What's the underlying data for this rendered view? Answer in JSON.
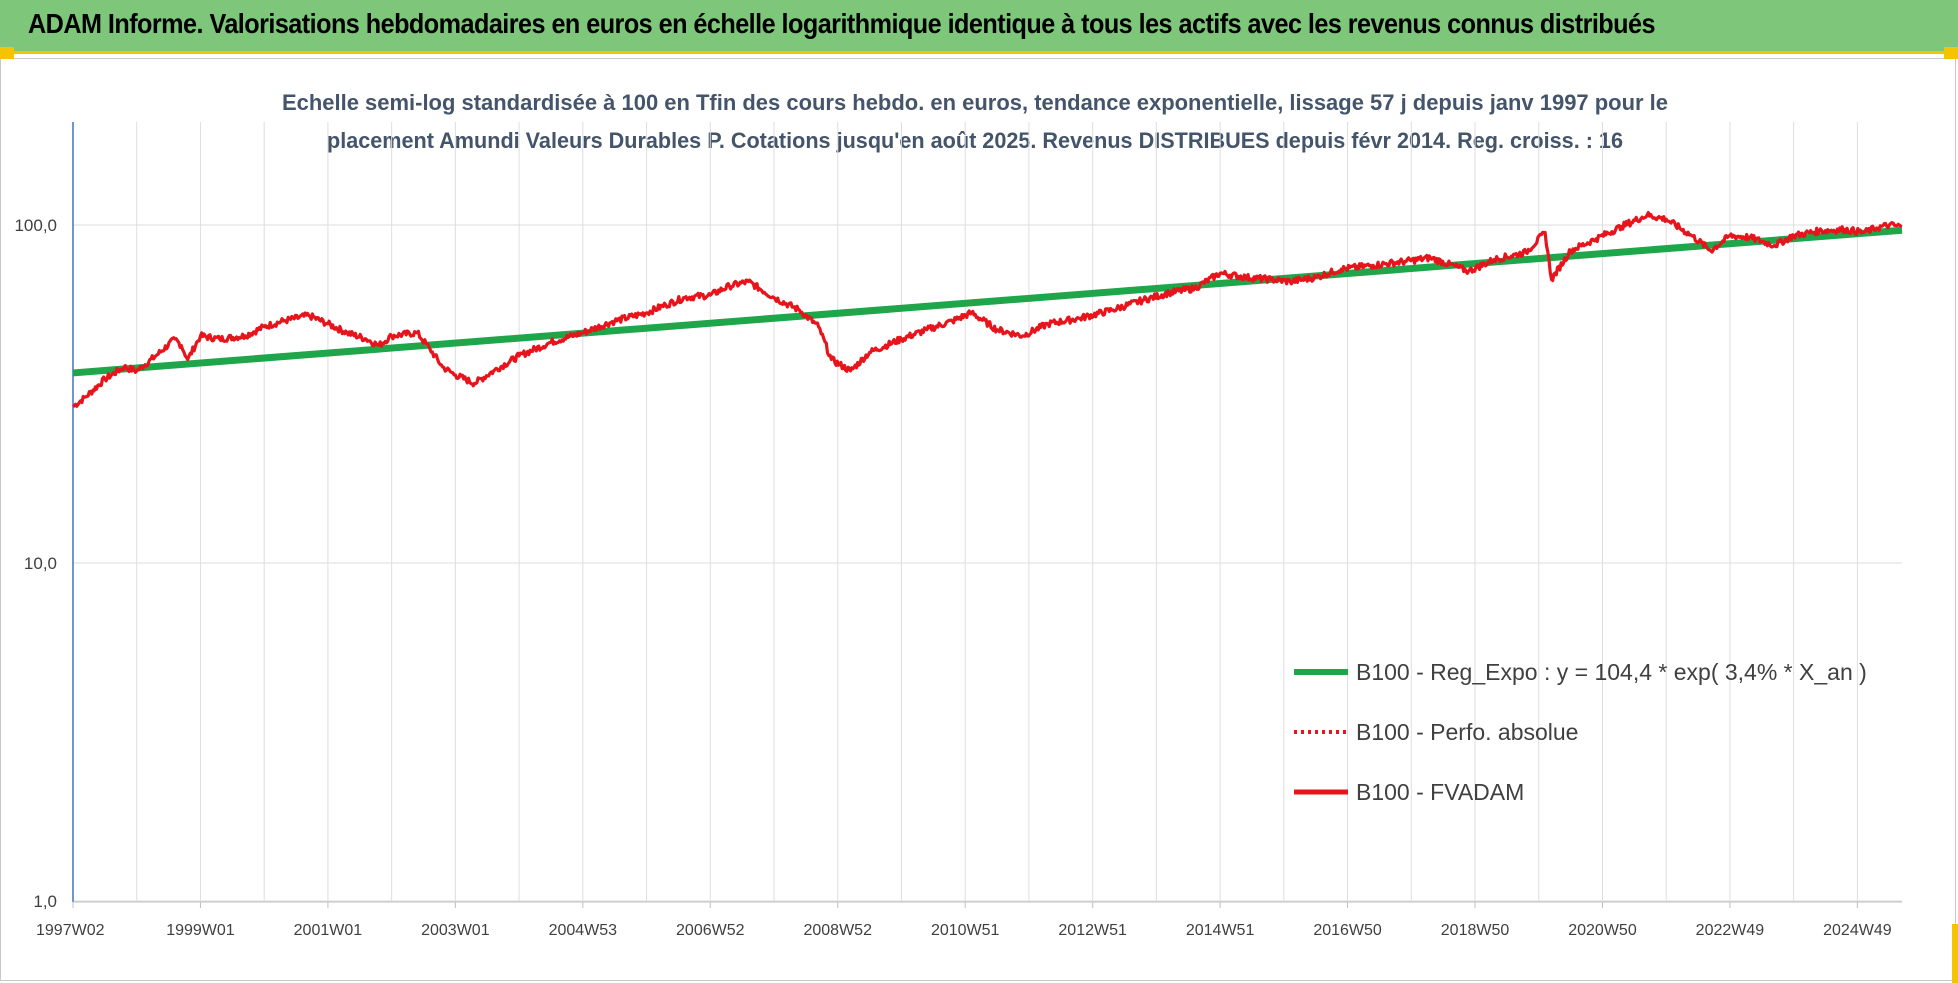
{
  "header": {
    "title": "ADAM Informe. Valorisations hebdomadaires en euros en échelle logarithmique identique à tous les actifs avec les revenus connus distribués"
  },
  "colors": {
    "banner": "#7dc67a",
    "accent": "#f5c400",
    "trend": "#1fa64a",
    "series": "#e8141c",
    "title_text": "#44546a"
  },
  "chart_data": {
    "type": "line",
    "title_lines": [
      "Echelle semi-log standardisée à 100 en Tfin des cours hebdo. en euros, tendance exponentielle, lissage 57 j depuis janv 1997 pour le",
      "placement Amundi Valeurs Durables P. Cotations jusqu'en août 2025. Revenus DISTRIBUES depuis févr 2014. Reg. croiss. : 16"
    ],
    "xlabel": "",
    "ylabel": "",
    "y_scale": "log",
    "ylim": [
      1,
      200
    ],
    "xlim": [
      1997.0,
      2025.7
    ],
    "grid": true,
    "legend_position": "bottom-right",
    "y_ticks": [
      {
        "value": 1,
        "label": "1,0"
      },
      {
        "value": 10,
        "label": "10,0"
      },
      {
        "value": 100,
        "label": "100,0"
      }
    ],
    "x_ticks": [
      {
        "value": 1997.0,
        "label": "1997W02"
      },
      {
        "value": 1999.0,
        "label": "1999W01"
      },
      {
        "value": 2001.0,
        "label": "2001W01"
      },
      {
        "value": 2003.0,
        "label": "2003W01"
      },
      {
        "value": 2005.0,
        "label": "2004W53"
      },
      {
        "value": 2007.0,
        "label": "2006W52"
      },
      {
        "value": 2009.0,
        "label": "2008W52"
      },
      {
        "value": 2011.0,
        "label": "2010W51"
      },
      {
        "value": 2013.0,
        "label": "2012W51"
      },
      {
        "value": 2015.0,
        "label": "2014W51"
      },
      {
        "value": 2017.0,
        "label": "2016W50"
      },
      {
        "value": 2019.0,
        "label": "2018W50"
      },
      {
        "value": 2021.0,
        "label": "2020W50"
      },
      {
        "value": 2023.0,
        "label": "2022W49"
      },
      {
        "value": 2025.0,
        "label": "2024W49"
      }
    ],
    "series": [
      {
        "name": "B100 - Reg_Expo : y = 104,4 * exp( 3,4% *  X_an )",
        "style": "solid-thick",
        "color": "#1fa64a",
        "x": [
          1997.0,
          2025.7
        ],
        "values": [
          36.5,
          96.5
        ]
      },
      {
        "name": "B100 - Perfo. absolue",
        "style": "dotted",
        "color": "#e8141c",
        "x": [],
        "values": []
      },
      {
        "name": "B100 - FVADAM",
        "style": "solid",
        "color": "#e8141c",
        "x": [
          1997.0,
          1997.2,
          1997.5,
          1997.8,
          1998.0,
          1998.3,
          1998.6,
          1998.7,
          1998.8,
          1999.0,
          1999.3,
          1999.7,
          2000.0,
          2000.3,
          2000.7,
          2001.0,
          2001.3,
          2001.6,
          2001.8,
          2002.0,
          2002.4,
          2002.6,
          2002.8,
          2003.0,
          2003.3,
          2003.6,
          2004.0,
          2004.5,
          2005.0,
          2005.5,
          2006.0,
          2006.3,
          2006.6,
          2007.0,
          2007.3,
          2007.6,
          2008.0,
          2008.4,
          2008.7,
          2008.9,
          2009.2,
          2009.5,
          2010.0,
          2010.4,
          2010.8,
          2011.1,
          2011.5,
          2011.9,
          2012.3,
          2012.8,
          2013.3,
          2013.8,
          2014.2,
          2014.6,
          2015.0,
          2015.4,
          2015.8,
          2016.1,
          2016.5,
          2016.9,
          2017.4,
          2017.9,
          2018.3,
          2018.9,
          2019.3,
          2019.8,
          2020.1,
          2020.2,
          2020.5,
          2020.9,
          2021.3,
          2021.7,
          2022.0,
          2022.4,
          2022.7,
          2023.0,
          2023.3,
          2023.7,
          2024.0,
          2024.4,
          2024.8,
          2025.1,
          2025.3,
          2025.5,
          2025.7
        ],
        "values": [
          29,
          31,
          35,
          38,
          37,
          41,
          46,
          44,
          40,
          47,
          46,
          47,
          50,
          52,
          54,
          51,
          48,
          46,
          44,
          47,
          48,
          43,
          38,
          36,
          34,
          37,
          41,
          45,
          48,
          52,
          55,
          58,
          61,
          62,
          66,
          68,
          61,
          56,
          50,
          40,
          37,
          42,
          46,
          49,
          52,
          55,
          49,
          47,
          51,
          53,
          56,
          60,
          63,
          65,
          72,
          70,
          69,
          68,
          70,
          74,
          76,
          78,
          80,
          73,
          79,
          83,
          95,
          69,
          84,
          91,
          99,
          107,
          104,
          93,
          84,
          93,
          92,
          87,
          93,
          96,
          97,
          95,
          98,
          100,
          99
        ]
      }
    ]
  }
}
